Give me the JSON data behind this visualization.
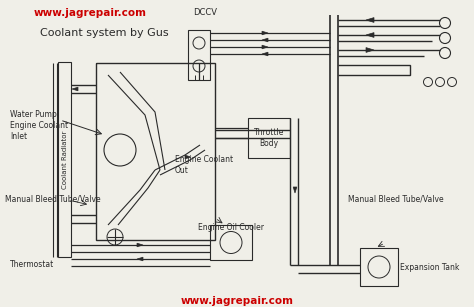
{
  "bg_color": "#f0efe8",
  "line_color": "#2a2a2a",
  "title_text": "Coolant system by Gus",
  "url_top": "www.jagrepair.com",
  "url_bottom": "www.jagrepair.com",
  "url_color": "#cc0000",
  "labels": {
    "dccv": "DCCV",
    "water_pump": "Water Pump\nEngine Coolant\nInlet",
    "coolant_radiator": "Coolant Radiator",
    "engine_coolant_out": "Engine Coolant\nOut",
    "throttle_body": "Throttle\nBody",
    "manual_bleed_left": "Manual Bleed Tube/Valve",
    "manual_bleed_right": "Manual Bleed Tube/Valve",
    "engine_oil_cooler": "Engine Oil Cooler",
    "thermostat": "Thermostat",
    "expansion_tank": "Expansion Tank"
  }
}
